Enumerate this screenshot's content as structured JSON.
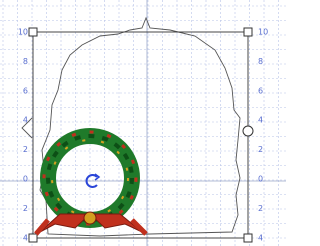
{
  "ruler_left": {
    "labels": [
      "10",
      "8",
      "6",
      "4",
      "2",
      "0",
      "2",
      "4"
    ]
  },
  "ruler_right": {
    "labels": [
      "10",
      "8",
      "6",
      "4",
      "2",
      "0",
      "2",
      "4"
    ]
  }
}
